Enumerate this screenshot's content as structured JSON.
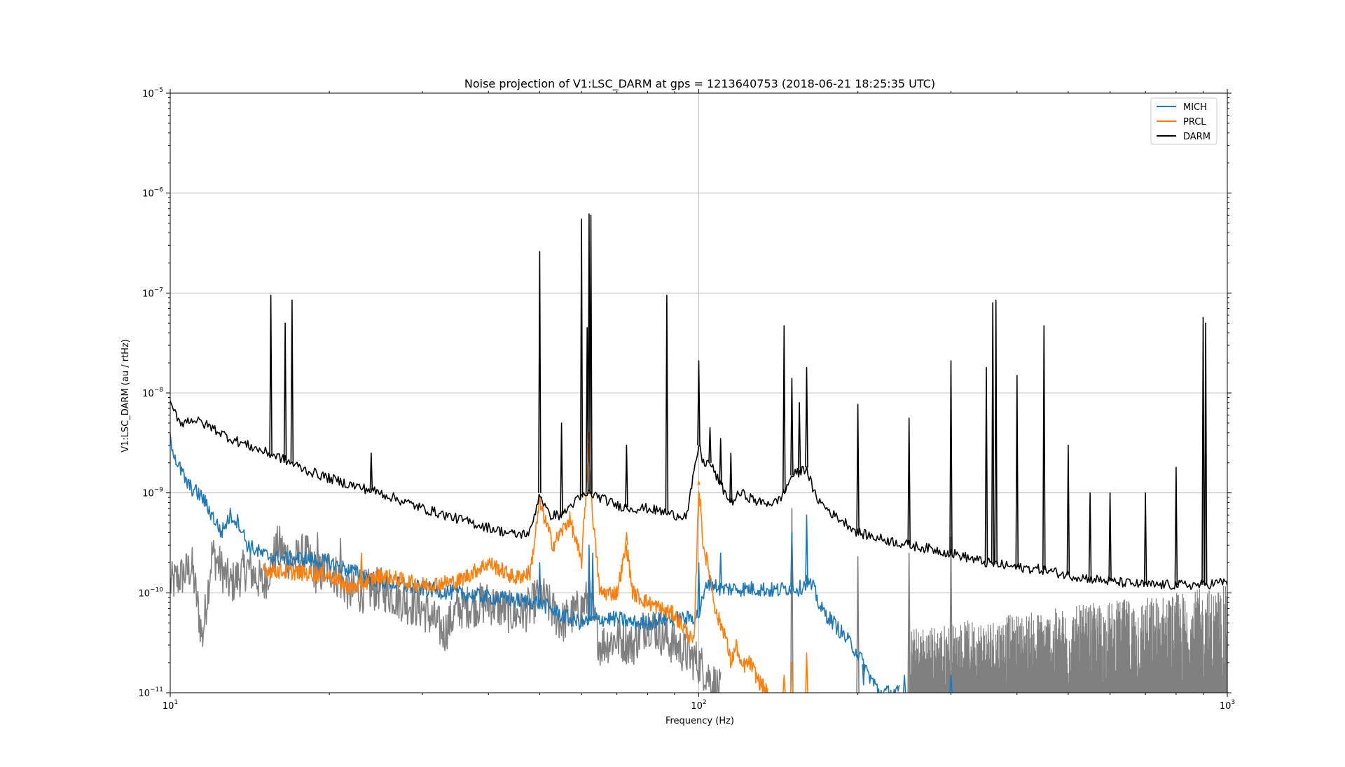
{
  "chart_data": {
    "type": "line",
    "title": "Noise projection of V1:LSC_DARM at gps = 1213640753 (2018-06-21 18:25:35 UTC)",
    "xlabel": "Frequency (Hz)",
    "ylabel": "V1:LSC_DARM (au / rtHz)",
    "x_scale": "log",
    "y_scale": "log",
    "xlim": [
      10,
      1000
    ],
    "ylim": [
      1e-11,
      1e-05
    ],
    "x_major_ticks": [
      10,
      100,
      1000
    ],
    "x_tick_labels": [
      {
        "base": "10",
        "exp": "1"
      },
      {
        "base": "10",
        "exp": "2"
      },
      {
        "base": "10",
        "exp": "3"
      }
    ],
    "y_major_ticks": [
      1e-11,
      1e-10,
      1e-09,
      1e-08,
      1e-07,
      1e-06,
      1e-05
    ],
    "y_tick_labels": [
      {
        "base": "10",
        "exp": "−11"
      },
      {
        "base": "10",
        "exp": "−10"
      },
      {
        "base": "10",
        "exp": "−9"
      },
      {
        "base": "10",
        "exp": "−8"
      },
      {
        "base": "10",
        "exp": "−7"
      },
      {
        "base": "10",
        "exp": "−6"
      },
      {
        "base": "10",
        "exp": "−5"
      }
    ],
    "grid": true,
    "legend_position": "top-right",
    "legend_entries": [
      "MICH",
      "PRCL",
      "DARM"
    ],
    "series": [
      {
        "name": "MICH",
        "color": "#1f77b4",
        "points": [
          [
            10,
            3.5e-09
          ],
          [
            10.3,
            2e-09
          ],
          [
            10.8,
            1.2e-09
          ],
          [
            11.5,
            9e-10
          ],
          [
            12,
            6e-10
          ],
          [
            12.5,
            4e-10
          ],
          [
            13,
            6e-10
          ],
          [
            13.5,
            5e-10
          ],
          [
            14,
            3e-10
          ],
          [
            15,
            2.4e-10
          ],
          [
            16,
            2.2e-10
          ],
          [
            18,
            2.2e-10
          ],
          [
            20,
            2e-10
          ],
          [
            25,
            1.3e-10
          ],
          [
            30,
            1.1e-10
          ],
          [
            40,
            9e-11
          ],
          [
            50,
            8e-11
          ],
          [
            55,
            6e-11
          ],
          [
            60,
            5e-11
          ],
          [
            65,
            5.5e-11
          ],
          [
            70,
            5.5e-11
          ],
          [
            75,
            5e-11
          ],
          [
            80,
            5e-11
          ],
          [
            85,
            5.5e-11
          ],
          [
            90,
            5.5e-11
          ],
          [
            95,
            5.5e-11
          ],
          [
            100,
            6e-11
          ],
          [
            104,
            1.3e-10
          ],
          [
            110,
            1.1e-10
          ],
          [
            120,
            1.1e-10
          ],
          [
            130,
            1.1e-10
          ],
          [
            140,
            1.05e-10
          ],
          [
            150,
            1.15e-10
          ],
          [
            155,
            1.1e-10
          ],
          [
            160,
            1.3e-10
          ],
          [
            165,
            1.1e-10
          ],
          [
            170,
            7e-11
          ],
          [
            180,
            5e-11
          ],
          [
            190,
            3.5e-11
          ],
          [
            200,
            2.5e-11
          ],
          [
            210,
            1.5e-11
          ],
          [
            220,
            1e-11
          ],
          [
            240,
            1e-11
          ]
        ],
        "spikes": [
          [
            50,
            2e-10
          ],
          [
            62,
            3e-10
          ],
          [
            63,
            2.5e-10
          ],
          [
            100,
            2e-10
          ],
          [
            110,
            2.5e-10
          ],
          [
            150,
            4e-10
          ],
          [
            160,
            6e-10
          ],
          [
            205,
            1.2e-11
          ],
          [
            245,
            1.5e-11
          ],
          [
            300,
            1.5e-11
          ]
        ]
      },
      {
        "name": "PRCL",
        "color": "#ff7f0e",
        "points": [
          [
            15,
            1.7e-10
          ],
          [
            20,
            1.5e-10
          ],
          [
            22,
            1.1e-10
          ],
          [
            25,
            1.5e-10
          ],
          [
            28,
            1.3e-10
          ],
          [
            30,
            1.2e-10
          ],
          [
            35,
            1.3e-10
          ],
          [
            40,
            2e-10
          ],
          [
            45,
            1.4e-10
          ],
          [
            48,
            1.6e-10
          ],
          [
            50,
            8e-10
          ],
          [
            53,
            3e-10
          ],
          [
            57,
            5.5e-10
          ],
          [
            60,
            2e-10
          ],
          [
            62,
            3e-09
          ],
          [
            63,
            6e-10
          ],
          [
            65,
            1e-10
          ],
          [
            70,
            1e-10
          ],
          [
            73,
            3e-10
          ],
          [
            75,
            1e-10
          ],
          [
            80,
            8e-11
          ],
          [
            90,
            6e-11
          ],
          [
            95,
            4e-11
          ],
          [
            98,
            3e-11
          ],
          [
            100,
            1.2e-09
          ],
          [
            102,
            3e-10
          ],
          [
            105,
            1.5e-10
          ],
          [
            108,
            6e-11
          ],
          [
            112,
            4e-11
          ],
          [
            115,
            2e-11
          ],
          [
            118,
            3e-11
          ],
          [
            120,
            1.8e-11
          ],
          [
            125,
            2e-11
          ],
          [
            130,
            1.3e-11
          ],
          [
            135,
            1e-11
          ]
        ],
        "spikes": [
          [
            23,
            2.5e-10
          ],
          [
            62,
            4e-09
          ],
          [
            73,
            4e-10
          ],
          [
            100,
            1.3e-09
          ],
          [
            145,
            1.5e-11
          ],
          [
            150,
            2e-11
          ],
          [
            160,
            2.5e-11
          ]
        ]
      },
      {
        "name": "DARM",
        "color": "#000000",
        "points": [
          [
            10,
            7.5e-09
          ],
          [
            10.5,
            5e-09
          ],
          [
            11,
            5.5e-09
          ],
          [
            12,
            4.5e-09
          ],
          [
            13,
            3.5e-09
          ],
          [
            14,
            3e-09
          ],
          [
            15,
            2.6e-09
          ],
          [
            16,
            2.3e-09
          ],
          [
            18,
            1.7e-09
          ],
          [
            20,
            1.4e-09
          ],
          [
            22,
            1.2e-09
          ],
          [
            25,
            1e-09
          ],
          [
            28,
            8e-10
          ],
          [
            30,
            7e-10
          ],
          [
            35,
            5.5e-10
          ],
          [
            40,
            4.5e-10
          ],
          [
            45,
            3.8e-10
          ],
          [
            48,
            4e-10
          ],
          [
            50,
            1e-09
          ],
          [
            52,
            6e-10
          ],
          [
            55,
            6e-10
          ],
          [
            58,
            8e-10
          ],
          [
            60,
            9e-10
          ],
          [
            62,
            1e-09
          ],
          [
            65,
            9e-10
          ],
          [
            70,
            7.5e-10
          ],
          [
            75,
            7e-10
          ],
          [
            80,
            7e-10
          ],
          [
            85,
            6.5e-10
          ],
          [
            90,
            6e-10
          ],
          [
            95,
            6e-10
          ],
          [
            100,
            3e-09
          ],
          [
            102,
            2e-09
          ],
          [
            105,
            2e-09
          ],
          [
            110,
            1.2e-09
          ],
          [
            115,
            8e-10
          ],
          [
            120,
            1e-09
          ],
          [
            130,
            8e-10
          ],
          [
            140,
            8e-10
          ],
          [
            145,
            1e-09
          ],
          [
            150,
            1.5e-09
          ],
          [
            155,
            1.6e-09
          ],
          [
            160,
            1.8e-09
          ],
          [
            165,
            1e-09
          ],
          [
            170,
            8e-10
          ],
          [
            180,
            6e-10
          ],
          [
            190,
            5e-10
          ],
          [
            200,
            4e-10
          ],
          [
            220,
            3.5e-10
          ],
          [
            250,
            3e-10
          ],
          [
            280,
            2.7e-10
          ],
          [
            300,
            2.5e-10
          ],
          [
            350,
            2e-10
          ],
          [
            400,
            1.8e-10
          ],
          [
            450,
            1.7e-10
          ],
          [
            500,
            1.5e-10
          ],
          [
            600,
            1.3e-10
          ],
          [
            700,
            1.2e-10
          ],
          [
            800,
            1.2e-10
          ],
          [
            900,
            1.2e-10
          ],
          [
            1000,
            1.3e-10
          ]
        ],
        "spikes": [
          [
            15.5,
            9.5e-08
          ],
          [
            16.5,
            5e-08
          ],
          [
            17,
            8.5e-08
          ],
          [
            24,
            2.5e-09
          ],
          [
            50,
            2.6e-07
          ],
          [
            55,
            5e-09
          ],
          [
            60,
            5.5e-07
          ],
          [
            61.5,
            4.5e-08
          ],
          [
            62,
            6.2e-07
          ],
          [
            62.5,
            6e-07
          ],
          [
            73,
            3e-09
          ],
          [
            87,
            9.5e-08
          ],
          [
            100,
            2.1e-08
          ],
          [
            105,
            4.5e-09
          ],
          [
            110,
            3.5e-09
          ],
          [
            115,
            2.5e-09
          ],
          [
            145,
            4.7e-08
          ],
          [
            150,
            1.4e-08
          ],
          [
            155,
            8e-09
          ],
          [
            160,
            1.8e-08
          ],
          [
            200,
            7.7e-09
          ],
          [
            250,
            5.6e-09
          ],
          [
            300,
            2.1e-08
          ],
          [
            350,
            1.8e-08
          ],
          [
            360,
            8e-08
          ],
          [
            365,
            8.5e-08
          ],
          [
            400,
            1.5e-08
          ],
          [
            450,
            4.7e-08
          ],
          [
            500,
            3e-09
          ],
          [
            550,
            1e-09
          ],
          [
            600,
            1e-09
          ],
          [
            700,
            1e-09
          ],
          [
            800,
            1.8e-09
          ],
          [
            900,
            5.7e-08
          ],
          [
            910,
            5e-08
          ]
        ]
      },
      {
        "name": "",
        "color": "#808080",
        "points": [
          [
            10,
            1.2e-10
          ],
          [
            11,
            1.8e-10
          ],
          [
            11.5,
            3.5e-11
          ],
          [
            12,
            2.5e-10
          ],
          [
            13,
            1.2e-10
          ],
          [
            14,
            1.8e-10
          ],
          [
            15,
            1.2e-10
          ],
          [
            16,
            3e-10
          ],
          [
            17,
            2e-10
          ],
          [
            18,
            2.5e-10
          ],
          [
            19,
            1.5e-10
          ],
          [
            20,
            1.8e-10
          ],
          [
            22,
            1e-10
          ],
          [
            25,
            1.1e-10
          ],
          [
            28,
            8e-11
          ],
          [
            30,
            7e-11
          ],
          [
            33,
            4e-11
          ],
          [
            35,
            7e-11
          ],
          [
            40,
            8e-11
          ],
          [
            45,
            6e-11
          ],
          [
            48,
            7e-11
          ],
          [
            50,
            1e-10
          ],
          [
            55,
            5e-11
          ],
          [
            60,
            7e-11
          ],
          [
            62,
            9e-11
          ],
          [
            65,
            3e-11
          ],
          [
            70,
            3.5e-11
          ],
          [
            75,
            3e-11
          ],
          [
            80,
            5e-11
          ],
          [
            90,
            3e-11
          ],
          [
            100,
            2e-11
          ],
          [
            110,
            1e-11
          ]
        ],
        "spikes": [
          [
            16.5,
            3e-10
          ],
          [
            19,
            4e-10
          ],
          [
            21,
            3.5e-10
          ],
          [
            62,
            1.7e-10
          ],
          [
            150,
            7e-10
          ],
          [
            200,
            2.3e-10
          ],
          [
            250,
            2.5e-10
          ],
          [
            300,
            3.6e-10
          ]
        ],
        "band": {
          "from": 250,
          "to": 1000,
          "low": 1e-11,
          "high": 1.2e-10
        }
      }
    ]
  }
}
